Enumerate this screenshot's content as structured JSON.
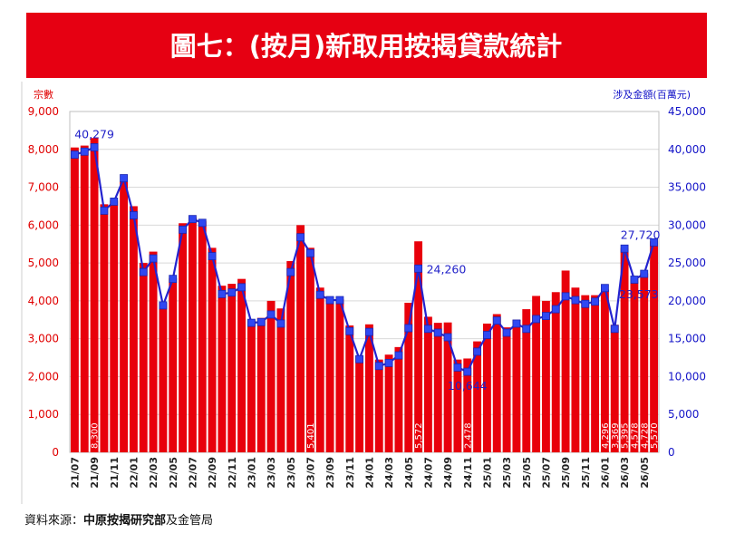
{
  "colors": {
    "title_bg": "#e60012",
    "title_text": "#ffffff",
    "bar": "#e8000b",
    "bar_label": "#ffffff",
    "line": "#2323cf",
    "marker": "#2f48f2",
    "marker_edge": "#1c26b0",
    "line_label": "#1f1fc8",
    "left_axis_text": "#e00000",
    "right_axis_text": "#1414c8",
    "x_axis_text": "#222222",
    "grid": "#d9d9d9",
    "plot_border": "#bfbfbf",
    "source_text": "#111111"
  },
  "chart_data": {
    "type": "bar",
    "title": "圖七：(按月)新取用按揭貸款統計",
    "ylabel": "宗數",
    "y2label": "涉及金額(百萬元)",
    "ylim": [
      0,
      9000
    ],
    "y2lim": [
      0,
      45000
    ],
    "yticks": [
      0,
      1000,
      2000,
      3000,
      4000,
      5000,
      6000,
      7000,
      8000,
      9000
    ],
    "y2ticks": [
      0,
      5000,
      10000,
      15000,
      20000,
      25000,
      30000,
      35000,
      40000,
      45000
    ],
    "grid": true,
    "categories": [
      "21/07",
      "21/08",
      "21/09",
      "21/10",
      "21/11",
      "21/12",
      "22/01",
      "22/02",
      "22/03",
      "22/04",
      "22/05",
      "22/06",
      "22/07",
      "22/08",
      "22/09",
      "22/10",
      "22/11",
      "22/12",
      "23/01",
      "23/02",
      "23/03",
      "23/04",
      "23/05",
      "23/06",
      "23/07",
      "23/08",
      "23/09",
      "23/10",
      "23/11",
      "23/12",
      "24/01",
      "24/02",
      "24/03",
      "24/04",
      "24/05",
      "24/06",
      "24/07",
      "24/08",
      "24/09",
      "24/10",
      "24/11",
      "24/12",
      "25/01",
      "25/02",
      "25/03",
      "25/04",
      "25/05",
      "25/06",
      "25/07",
      "25/08",
      "25/09",
      "25/10",
      "25/11",
      "25/12",
      "26/01",
      "26/02",
      "26/03",
      "26/04",
      "26/05",
      "26/06"
    ],
    "xticks": [
      "21/07",
      "21/09",
      "21/11",
      "22/01",
      "22/03",
      "22/05",
      "22/07",
      "22/09",
      "22/11",
      "23/01",
      "23/03",
      "23/05",
      "23/07",
      "23/09",
      "23/11",
      "24/01",
      "24/03",
      "24/05",
      "24/07",
      "24/09",
      "24/11",
      "25/01",
      "25/03",
      "25/05",
      "25/07",
      "25/09",
      "25/11",
      "26/01",
      "26/03",
      "26/05"
    ],
    "series": [
      {
        "type": "bar",
        "axis": "left",
        "values": [
          8050,
          8100,
          8300,
          6550,
          6650,
          7150,
          6500,
          5000,
          5300,
          3950,
          4600,
          6050,
          6200,
          6100,
          5400,
          4400,
          4450,
          4580,
          3480,
          3550,
          4000,
          3800,
          5050,
          6000,
          5401,
          4350,
          4100,
          4050,
          3350,
          2550,
          3380,
          2450,
          2580,
          2780,
          3950,
          5572,
          3580,
          3420,
          3430,
          2450,
          2478,
          2930,
          3400,
          3650,
          3300,
          3500,
          3780,
          4130,
          4000,
          4230,
          4800,
          4350,
          4150,
          4150,
          4296,
          3369,
          5395,
          4578,
          4728,
          5570
        ],
        "labeled_indices": [
          2,
          24,
          35,
          40,
          54,
          55,
          56,
          57,
          58,
          59
        ]
      },
      {
        "type": "line",
        "axis": "right",
        "marker": "square",
        "values": [
          39300,
          39700,
          40279,
          31900,
          33100,
          36200,
          31300,
          23800,
          25600,
          19400,
          22900,
          29400,
          30800,
          30300,
          25900,
          20900,
          21100,
          21800,
          17100,
          17200,
          18200,
          17000,
          23800,
          28400,
          26300,
          20800,
          20100,
          20100,
          16000,
          12300,
          15900,
          11400,
          11800,
          12800,
          16400,
          24260,
          16300,
          15800,
          15200,
          11200,
          10644,
          13300,
          15500,
          17400,
          15800,
          17000,
          16300,
          17600,
          18000,
          18900,
          20600,
          20100,
          19600,
          19900,
          21700,
          16300,
          26900,
          22800,
          23573,
          27720
        ],
        "labels": [
          {
            "index": 2,
            "placement": "above"
          },
          {
            "index": 35,
            "placement": "right"
          },
          {
            "index": 40,
            "placement": "below"
          },
          {
            "index": 58,
            "placement": "below-left"
          },
          {
            "index": 59,
            "placement": "above-left"
          }
        ]
      }
    ]
  },
  "source": {
    "prefix": "資料來源：",
    "bold": "中原按揭研究部",
    "suffix": "及金管局"
  }
}
